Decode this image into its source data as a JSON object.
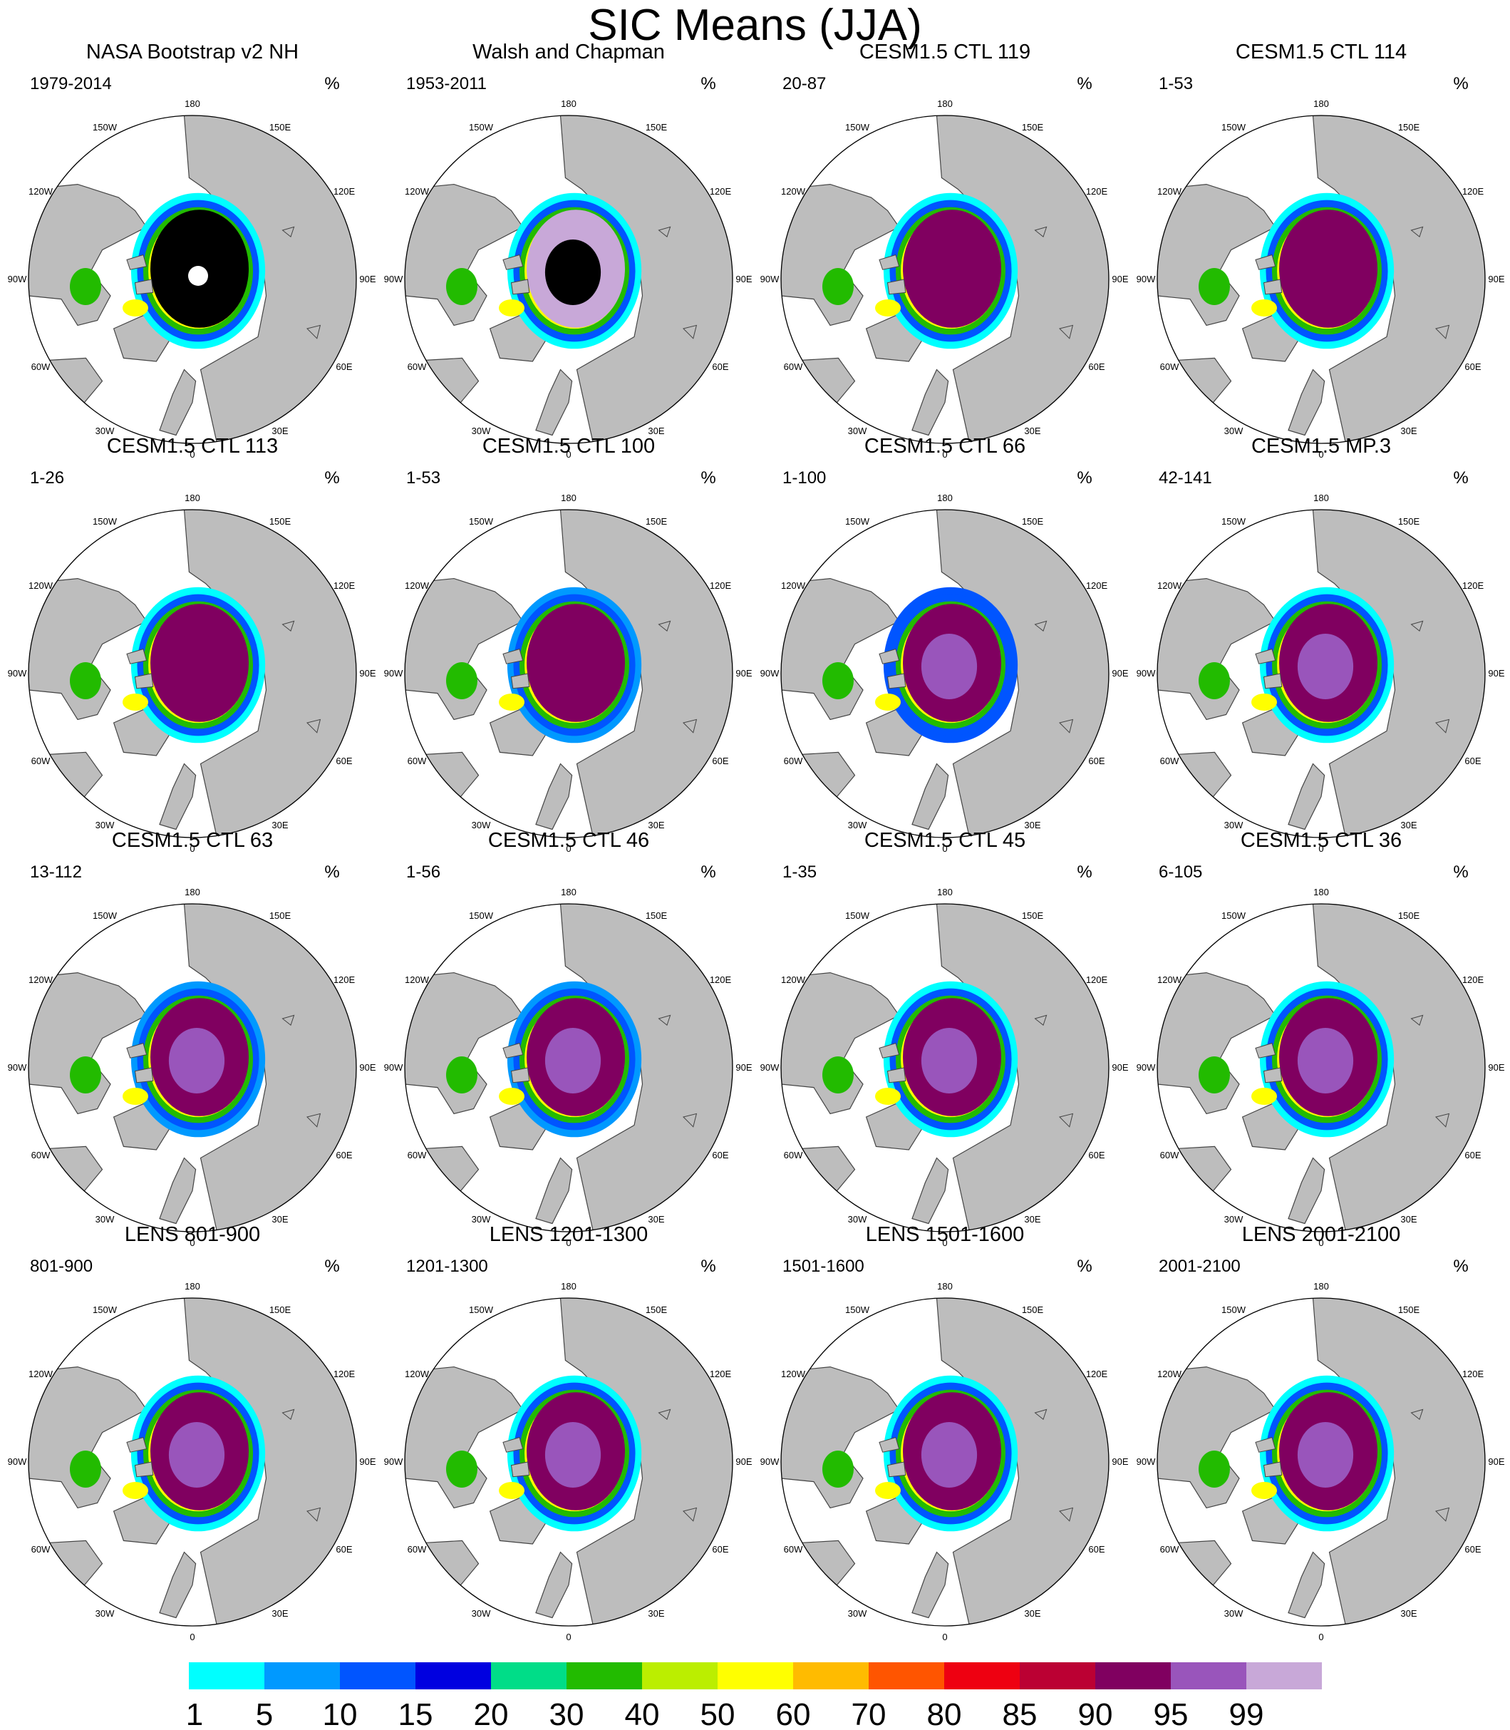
{
  "title": "SIC Means (JJA)",
  "units_label": "%",
  "longitude_labels": [
    "180",
    "150E",
    "120E",
    "90E",
    "60E",
    "30E",
    "0",
    "30W",
    "60W",
    "90W",
    "120W",
    "150W"
  ],
  "panels": [
    {
      "title": "NASA Bootstrap v2 NH",
      "period": "1979-2014",
      "core_class": 15,
      "inner_class": 16,
      "ring_shift": 0
    },
    {
      "title": "Walsh and Chapman",
      "period": "1953-2011",
      "core_class": 14,
      "inner_class": 15,
      "ring_shift": 0
    },
    {
      "title": "CESM1.5 CTL 119",
      "period": "20-87",
      "core_class": 12,
      "inner_class": 12,
      "ring_shift": 0
    },
    {
      "title": "CESM1.5 CTL 114",
      "period": "1-53",
      "core_class": 12,
      "inner_class": 12,
      "ring_shift": 0
    },
    {
      "title": "CESM1.5 CTL 113",
      "period": "1-26",
      "core_class": 12,
      "inner_class": 12,
      "ring_shift": 0
    },
    {
      "title": "CESM1.5 CTL 100",
      "period": "1-53",
      "core_class": 12,
      "inner_class": 12,
      "ring_shift": 1
    },
    {
      "title": "CESM1.5 CTL 66",
      "period": "1-100",
      "core_class": 12,
      "inner_class": 13,
      "ring_shift": 2
    },
    {
      "title": "CESM1.5 MP.3",
      "period": "42-141",
      "core_class": 12,
      "inner_class": 13,
      "ring_shift": 0
    },
    {
      "title": "CESM1.5 CTL 63",
      "period": "13-112",
      "core_class": 12,
      "inner_class": 13,
      "ring_shift": 1
    },
    {
      "title": "CESM1.5 CTL 46",
      "period": "1-56",
      "core_class": 12,
      "inner_class": 13,
      "ring_shift": 1
    },
    {
      "title": "CESM1.5 CTL 45",
      "period": "1-35",
      "core_class": 12,
      "inner_class": 13,
      "ring_shift": 0
    },
    {
      "title": "CESM1.5 CTL 36",
      "period": "6-105",
      "core_class": 12,
      "inner_class": 13,
      "ring_shift": 0
    },
    {
      "title": "LENS 801-900",
      "period": "801-900",
      "core_class": 12,
      "inner_class": 13,
      "ring_shift": 0
    },
    {
      "title": "LENS 1201-1300",
      "period": "1201-1300",
      "core_class": 12,
      "inner_class": 13,
      "ring_shift": 0
    },
    {
      "title": "LENS 1501-1600",
      "period": "1501-1600",
      "core_class": 12,
      "inner_class": 13,
      "ring_shift": 0
    },
    {
      "title": "LENS 2001-2100",
      "period": "2001-2100",
      "core_class": 12,
      "inner_class": 13,
      "ring_shift": 0
    }
  ],
  "colorbar": {
    "labels": [
      "1",
      "5",
      "10",
      "15",
      "20",
      "30",
      "40",
      "50",
      "60",
      "70",
      "80",
      "85",
      "90",
      "95",
      "99"
    ],
    "colors": [
      "#00ffff",
      "#0099ff",
      "#0055ff",
      "#0000e0",
      "#00dd88",
      "#22bb00",
      "#bbee00",
      "#ffff00",
      "#ffbb00",
      "#ff5500",
      "#ee0011",
      "#bb0033",
      "#800060",
      "#9955bb",
      "#c8a8d8"
    ]
  },
  "colors": {
    "land": "#bdbdbd",
    "ocean": "#ffffff",
    "coast": "#444444"
  }
}
